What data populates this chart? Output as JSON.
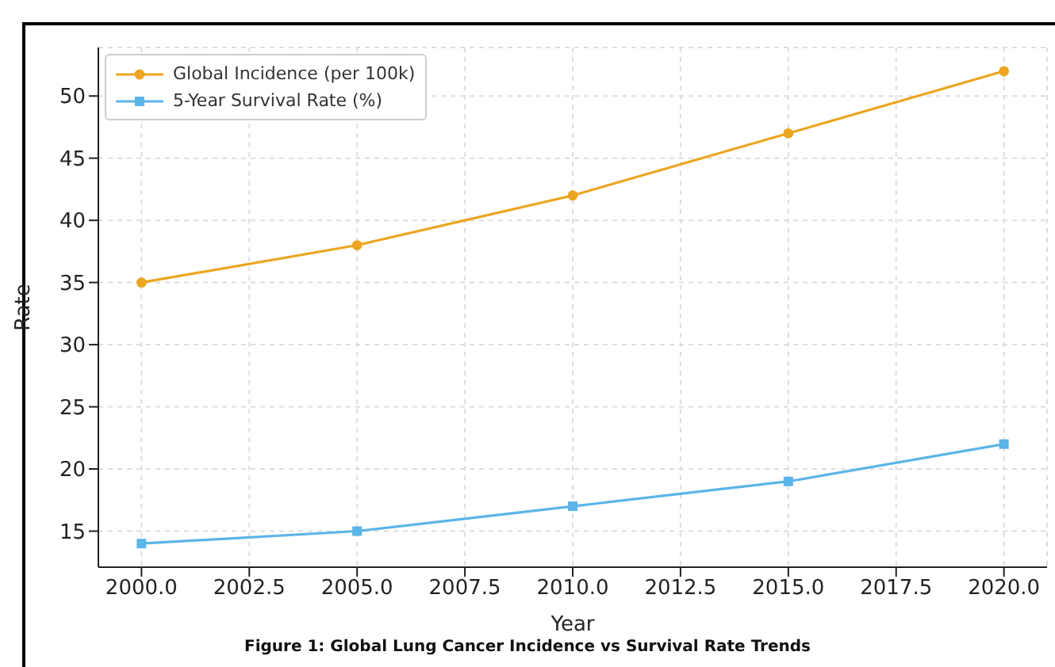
{
  "chart_data": {
    "type": "line",
    "xlabel": "Year",
    "ylabel": "Rate",
    "x": [
      2000,
      2005,
      2010,
      2015,
      2020
    ],
    "series": [
      {
        "name": "Global Incidence (per 100k)",
        "color": "#eba51f",
        "values": [
          35,
          38,
          42,
          47,
          52
        ],
        "marker": "circle"
      },
      {
        "name": "5-Year Survival Rate (%)",
        "color": "#5bb5e8",
        "values": [
          14,
          15,
          17,
          19,
          22
        ],
        "marker": "square"
      }
    ],
    "xlim": [
      1999,
      2021
    ],
    "xticks": [
      {
        "value": 2000,
        "label": "2000.0"
      },
      {
        "value": 2002.5,
        "label": "2002.5"
      },
      {
        "value": 2005,
        "label": "2005.0"
      },
      {
        "value": 2007.5,
        "label": "2007.5"
      },
      {
        "value": 2010,
        "label": "2010.0"
      },
      {
        "value": 2012.5,
        "label": "2012.5"
      },
      {
        "value": 2015,
        "label": "2015.0"
      },
      {
        "value": 2017.5,
        "label": "2017.5"
      },
      {
        "value": 2020,
        "label": "2020.0"
      }
    ],
    "ylim": [
      12.1,
      53.9
    ],
    "yticks": [
      15,
      20,
      25,
      30,
      35,
      40,
      45,
      50
    ],
    "grid": true,
    "legend": "top left",
    "line_style": "solid",
    "annotations": [
      "Figure 1: Global Lung Cancer Incidence vs Survival Rate Trends"
    ]
  }
}
